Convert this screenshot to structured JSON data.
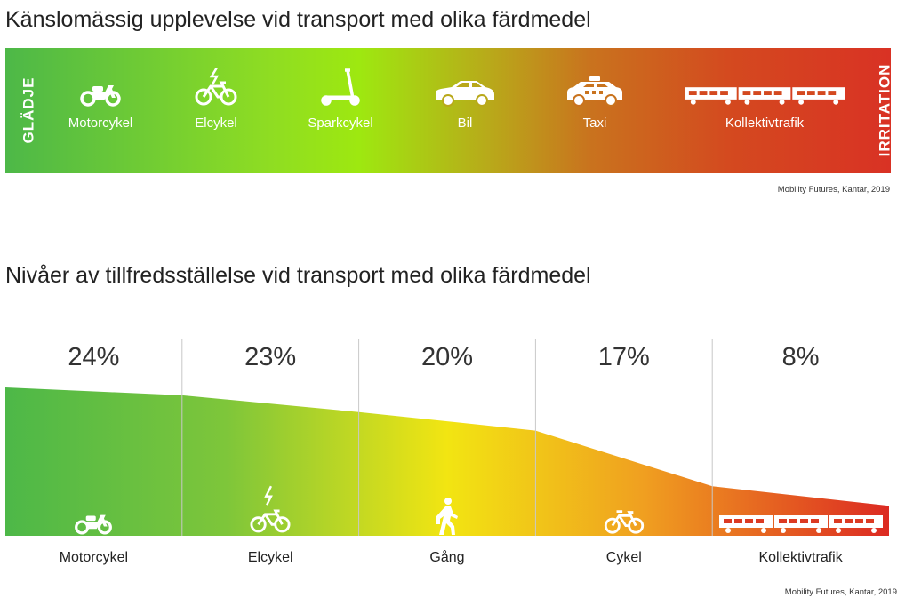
{
  "titles": {
    "top": "Känslomässig upplevelse vid transport med olika färdmedel",
    "bottom": "Nivåer av tillfredsställelse vid transport med olika färdmedel"
  },
  "scale": {
    "left": "GLÄDJE",
    "right": "IRRITATION"
  },
  "modes": [
    {
      "label": "Motorcykel",
      "icon": "motorcycle-icon"
    },
    {
      "label": "Elcykel",
      "icon": "ebike-icon"
    },
    {
      "label": "Sparkcykel",
      "icon": "kick-scooter-icon"
    },
    {
      "label": "Bil",
      "icon": "car-icon"
    },
    {
      "label": "Taxi",
      "icon": "taxi-icon"
    },
    {
      "label": "Kollektivtrafik",
      "icon": "train-icon"
    }
  ],
  "source": {
    "top": "Mobility Futures, Kantar, 2019",
    "bottom": "Mobility Futures, Kantar, 2019"
  },
  "colors": {
    "green": "#4db848",
    "lime": "#9ee810",
    "yellow": "#f2e512",
    "orange": "#f0a020",
    "red": "#dc2a22"
  },
  "chart_data": {
    "type": "area",
    "categories": [
      "Motorcykel",
      "Elcykel",
      "Gång",
      "Cykel",
      "Kollektivtrafik"
    ],
    "values": [
      24,
      23,
      20,
      17,
      8
    ],
    "value_labels": [
      "24%",
      "23%",
      "20%",
      "17%",
      "8%"
    ],
    "category_icons": [
      "motorcycle-icon",
      "ebike-icon",
      "walking-icon",
      "bicycle-icon",
      "train-icon"
    ],
    "ylim": [
      0,
      24
    ],
    "grid": "vertical separators between categories",
    "title": "Nivåer av tillfredsställelse vid transport med olika färdmedel"
  }
}
